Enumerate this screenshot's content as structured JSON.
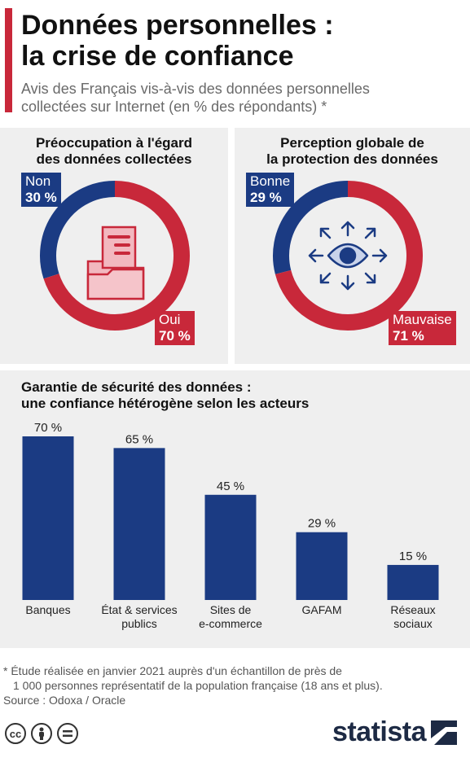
{
  "header": {
    "title_line1": "Données personnelles :",
    "title_line2": "la crise de confiance",
    "subtitle_line1": "Avis des Français vis-à-vis des données personnelles",
    "subtitle_line2": "collectées sur Internet (en % des répondants) *"
  },
  "chart_data": [
    {
      "type": "pie",
      "title_line1": "Préoccupation à l'égard",
      "title_line2": "des données collectées",
      "slices": [
        {
          "label": "Non",
          "value": 30,
          "value_label": "30 %",
          "color": "#1b3b83"
        },
        {
          "label": "Oui",
          "value": 70,
          "value_label": "70 %",
          "color": "#c8283a"
        }
      ],
      "center_icon": "folder-document-icon"
    },
    {
      "type": "pie",
      "title_line1": "Perception globale de",
      "title_line2": "la protection des données",
      "slices": [
        {
          "label": "Bonne",
          "value": 29,
          "value_label": "29 %",
          "color": "#1b3b83"
        },
        {
          "label": "Mauvaise",
          "value": 71,
          "value_label": "71 %",
          "color": "#c8283a"
        }
      ],
      "center_icon": "eye-arrows-icon"
    },
    {
      "type": "bar",
      "title_line1": "Garantie de sécurité des données :",
      "title_line2": "une confiance hétérogène selon les acteurs",
      "categories": [
        {
          "line1": "Banques",
          "line2": ""
        },
        {
          "line1": "État & services",
          "line2": "publics"
        },
        {
          "line1": "Sites de",
          "line2": "e-commerce"
        },
        {
          "line1": "GAFAM",
          "line2": ""
        },
        {
          "line1": "Réseaux",
          "line2": "sociaux"
        }
      ],
      "values": [
        70,
        65,
        45,
        29,
        15
      ],
      "value_labels": [
        "70 %",
        "65 %",
        "45 %",
        "29 %",
        "15 %"
      ],
      "ylim": [
        0,
        70
      ],
      "color": "#1b3b83",
      "grid": false
    }
  ],
  "footer": {
    "note_line1": "* Étude réalisée en janvier 2021 auprès d'un échantillon de près de",
    "note_line2": "1 000 personnes représentatif de la population française (18 ans et plus).",
    "source": "Source : Odoxa / Oracle",
    "license_icons": [
      "cc-icon",
      "by-icon",
      "nd-icon"
    ],
    "brand": "statista"
  }
}
